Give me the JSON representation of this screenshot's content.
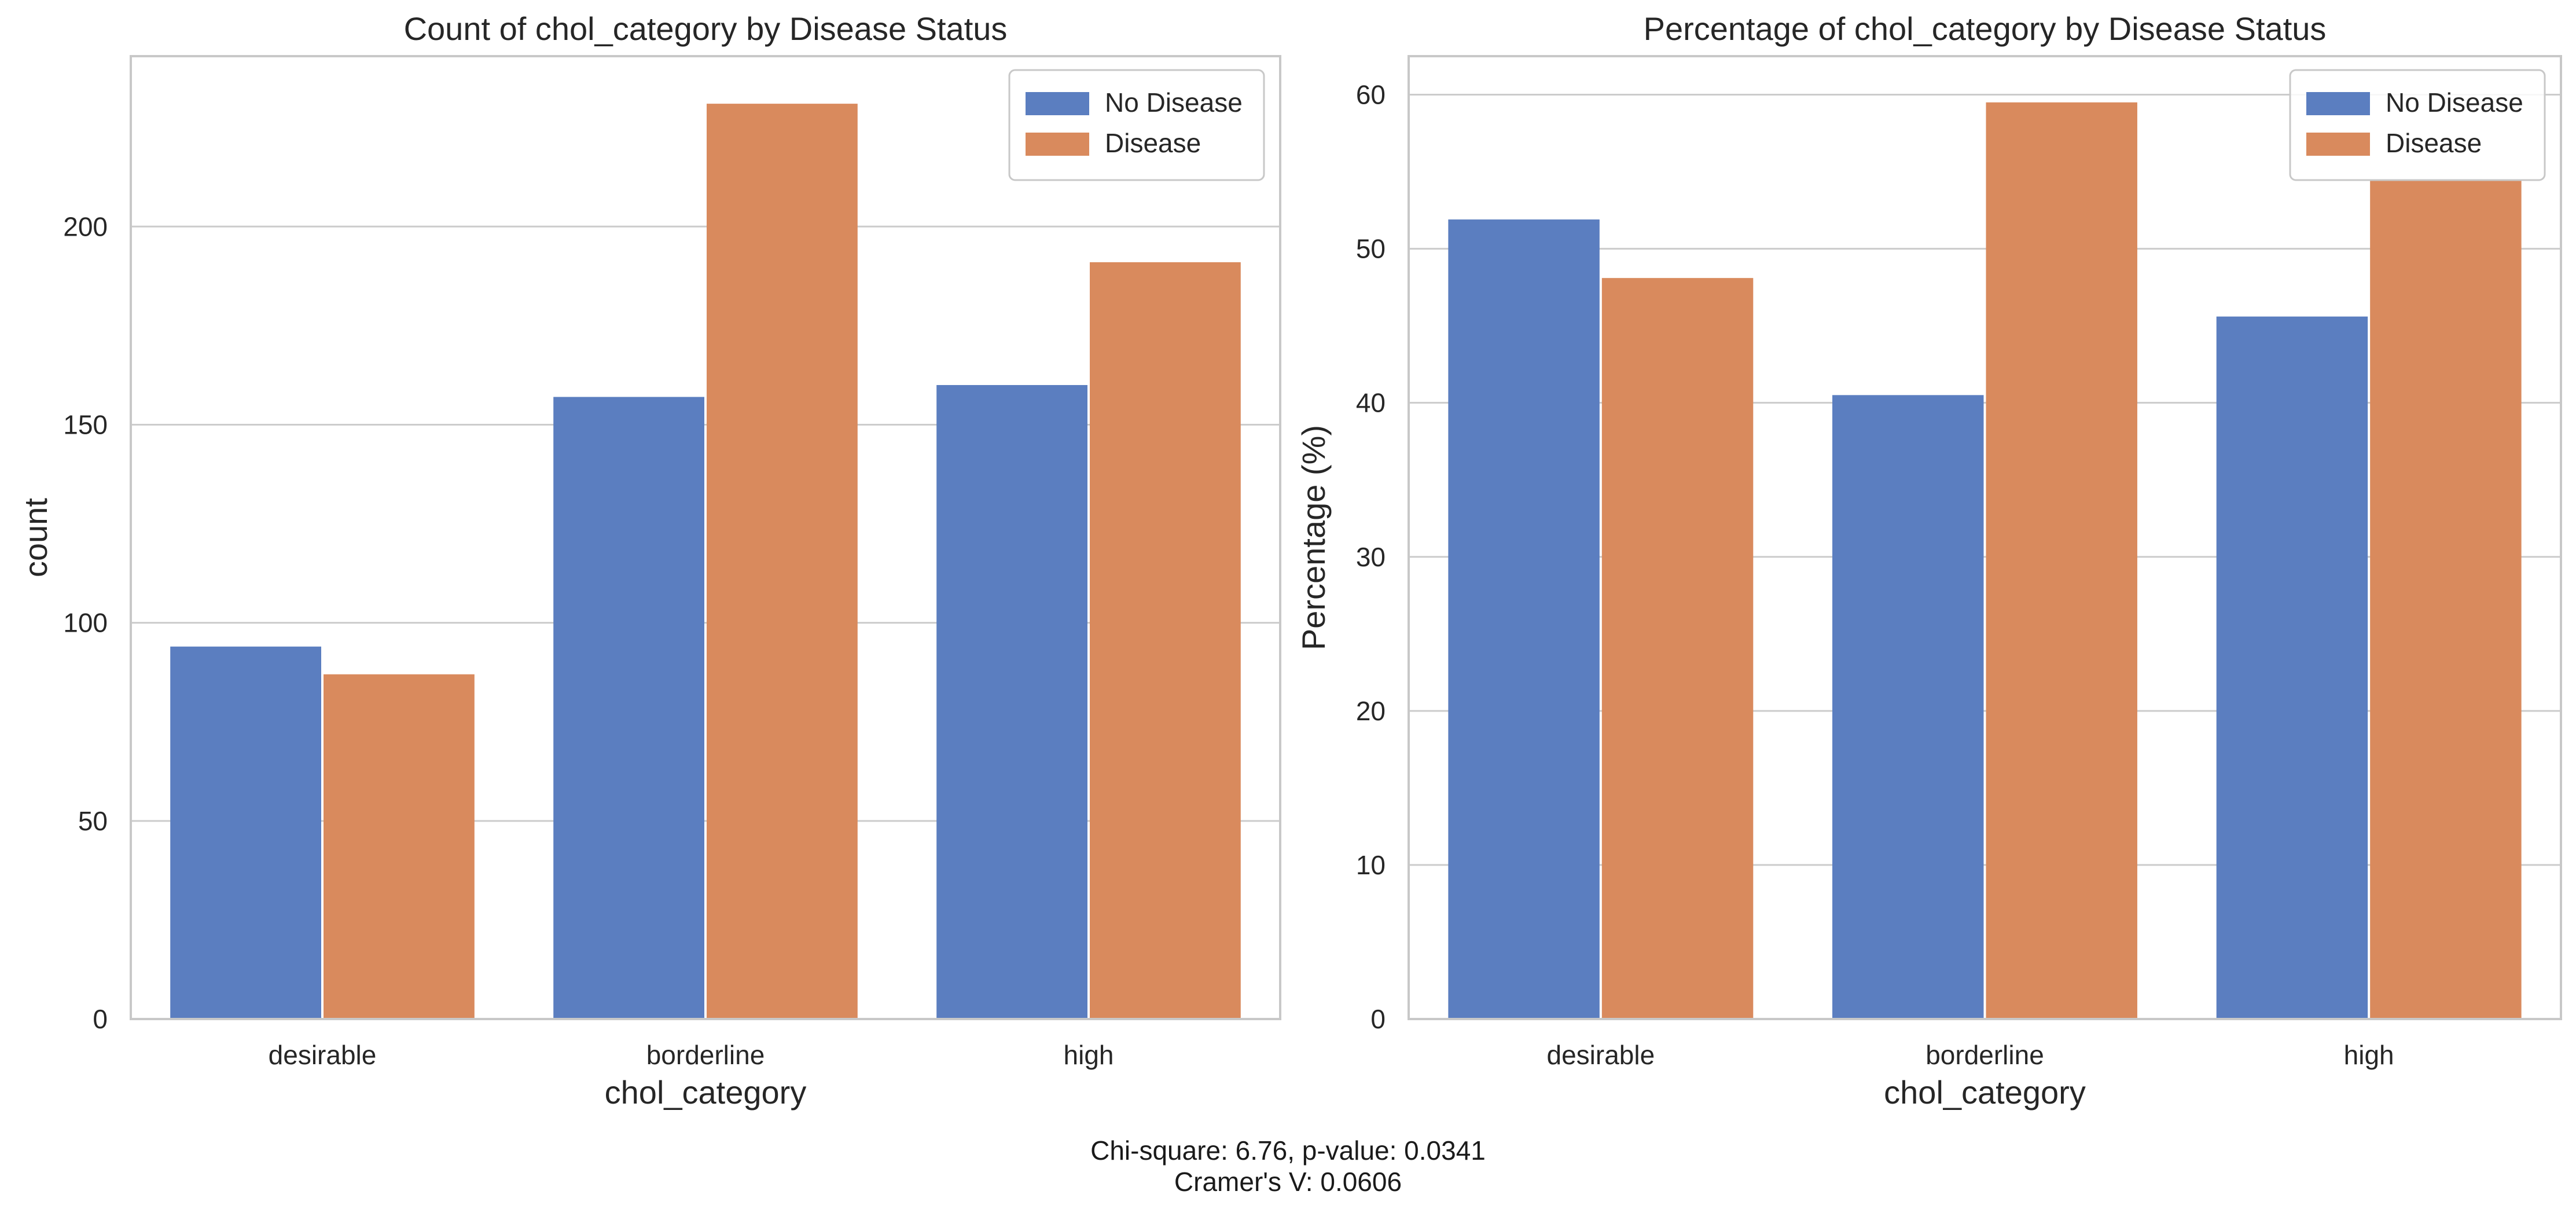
{
  "colors": {
    "no_disease": "#5b7ec0",
    "disease": "#d98a5d",
    "grid": "#cccccc",
    "spine": "#c8c8c8",
    "text": "#262626"
  },
  "stats": {
    "line1": "Chi-square: 6.76, p-value: 0.0341",
    "line2": "Cramer's V: 0.0606"
  },
  "chart_data": [
    {
      "type": "bar",
      "title": "Count of chol_category by Disease Status",
      "xlabel": "chol_category",
      "ylabel": "count",
      "categories": [
        "desirable",
        "borderline",
        "high"
      ],
      "series": [
        {
          "name": "No Disease",
          "values": [
            94,
            157,
            160
          ]
        },
        {
          "name": "Disease",
          "values": [
            87,
            231,
            191
          ]
        }
      ],
      "ylim": [
        0,
        243
      ],
      "yticks": [
        0,
        50,
        100,
        150,
        200
      ],
      "grid": "y",
      "legend": "top-right"
    },
    {
      "type": "bar",
      "title": "Percentage of chol_category by Disease Status",
      "xlabel": "chol_category",
      "ylabel": "Percentage (%)",
      "categories": [
        "desirable",
        "borderline",
        "high"
      ],
      "series": [
        {
          "name": "No Disease",
          "values": [
            51.9,
            40.5,
            45.6
          ]
        },
        {
          "name": "Disease",
          "values": [
            48.1,
            59.5,
            54.4
          ]
        }
      ],
      "ylim": [
        0,
        62.5
      ],
      "yticks": [
        0,
        10,
        20,
        30,
        40,
        50,
        60
      ],
      "grid": "y",
      "legend": "top-right"
    }
  ]
}
